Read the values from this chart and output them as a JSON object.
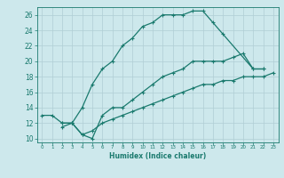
{
  "xlabel": "Humidex (Indice chaleur)",
  "xlim": [
    -0.5,
    23.5
  ],
  "ylim": [
    9.5,
    27
  ],
  "xticks": [
    0,
    1,
    2,
    3,
    4,
    5,
    6,
    7,
    8,
    9,
    10,
    11,
    12,
    13,
    14,
    15,
    16,
    17,
    18,
    19,
    20,
    21,
    22,
    23
  ],
  "yticks": [
    10,
    12,
    14,
    16,
    18,
    20,
    22,
    24,
    26
  ],
  "bg_color": "#cde8ec",
  "grid_color": "#b0ced4",
  "line_color": "#1a7a6e",
  "curve1_x": [
    0,
    1,
    2,
    3,
    4,
    5,
    6,
    7,
    8,
    9,
    10,
    11,
    12,
    13,
    14,
    15,
    16,
    17,
    18,
    21,
    22
  ],
  "curve1_y": [
    13,
    13,
    12,
    12,
    14,
    17,
    19,
    20,
    22,
    23,
    24.5,
    25,
    26,
    26,
    26,
    26.5,
    26.5,
    25,
    23.5,
    19,
    19
  ],
  "curve2_x": [
    2,
    3,
    4,
    5,
    6,
    7,
    8,
    9,
    10,
    11,
    12,
    13,
    14,
    15,
    16,
    17,
    18,
    19,
    20,
    21,
    22
  ],
  "curve2_y": [
    11.5,
    12,
    10.5,
    10,
    13,
    14,
    14,
    15,
    16,
    17,
    18,
    18.5,
    19,
    20,
    20,
    20,
    20,
    20.5,
    21,
    19,
    19
  ],
  "curve3_x": [
    2,
    3,
    4,
    5,
    6,
    7,
    8,
    9,
    10,
    11,
    12,
    13,
    14,
    15,
    16,
    17,
    18,
    19,
    20,
    21,
    22,
    23
  ],
  "curve3_y": [
    12,
    12,
    10.5,
    11,
    12,
    12.5,
    13,
    13.5,
    14,
    14.5,
    15,
    15.5,
    16,
    16.5,
    17,
    17,
    17.5,
    17.5,
    18,
    18,
    18,
    18.5
  ],
  "markersize": 3.5,
  "linewidth": 0.9
}
